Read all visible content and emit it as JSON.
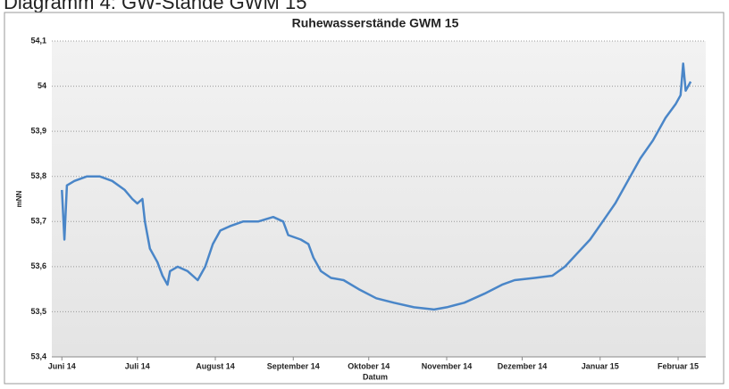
{
  "caption": "Diagramm 4: GW-Stände GWM 15",
  "chart_data": {
    "type": "line",
    "title": "Ruhewasserstände GWM 15",
    "x_label": "Datum",
    "y_label": "mNN",
    "series": [
      {
        "name": "GWM 15",
        "color": "#4a86c8",
        "x": [
          0,
          1,
          2,
          5,
          10,
          15,
          20,
          25,
          28,
          30,
          32,
          33,
          35,
          38,
          40,
          42,
          43,
          46,
          50,
          52,
          54,
          57,
          60,
          63,
          67,
          72,
          78,
          84,
          88,
          90,
          95,
          98,
          100,
          103,
          107,
          112,
          118,
          125,
          132,
          140,
          148,
          153,
          160,
          168,
          175,
          180,
          188,
          195,
          200,
          205,
          210,
          215,
          220,
          225,
          230,
          235,
          240,
          244,
          246,
          247,
          248,
          249,
          250
        ],
        "values": [
          53.77,
          53.66,
          53.78,
          53.79,
          53.8,
          53.8,
          53.79,
          53.77,
          53.75,
          53.74,
          53.75,
          53.7,
          53.64,
          53.61,
          53.58,
          53.56,
          53.59,
          53.6,
          53.59,
          53.58,
          53.57,
          53.6,
          53.65,
          53.68,
          53.69,
          53.7,
          53.7,
          53.71,
          53.7,
          53.67,
          53.66,
          53.65,
          53.62,
          53.59,
          53.575,
          53.57,
          53.55,
          53.53,
          53.52,
          53.51,
          53.505,
          53.51,
          53.52,
          53.54,
          53.56,
          53.57,
          53.575,
          53.58,
          53.6,
          53.63,
          53.66,
          53.7,
          53.74,
          53.79,
          53.84,
          53.88,
          53.93,
          53.96,
          53.98,
          54.05,
          53.99,
          54.0,
          54.01
        ]
      }
    ],
    "xlim": [
      -4,
      256
    ],
    "xticks": [
      {
        "value": 0,
        "label": "Juni 14"
      },
      {
        "value": 30,
        "label": "Juli 14"
      },
      {
        "value": 61,
        "label": "August 14"
      },
      {
        "value": 92,
        "label": "September 14"
      },
      {
        "value": 122,
        "label": "Oktober 14"
      },
      {
        "value": 153,
        "label": "November 14"
      },
      {
        "value": 183,
        "label": "Dezember 14"
      },
      {
        "value": 214,
        "label": "Januar 15"
      },
      {
        "value": 245,
        "label": "Februar 15"
      }
    ],
    "ylim": [
      53.4,
      54.1
    ],
    "yticks": [
      {
        "value": 53.4,
        "label": "53,4"
      },
      {
        "value": 53.5,
        "label": "53,5"
      },
      {
        "value": 53.6,
        "label": "53,6"
      },
      {
        "value": 53.7,
        "label": "53,7"
      },
      {
        "value": 53.8,
        "label": "53,8"
      },
      {
        "value": 53.9,
        "label": "53,9"
      },
      54,
      {
        "value": 54.1,
        "label": "54,1"
      }
    ],
    "grid": true
  }
}
